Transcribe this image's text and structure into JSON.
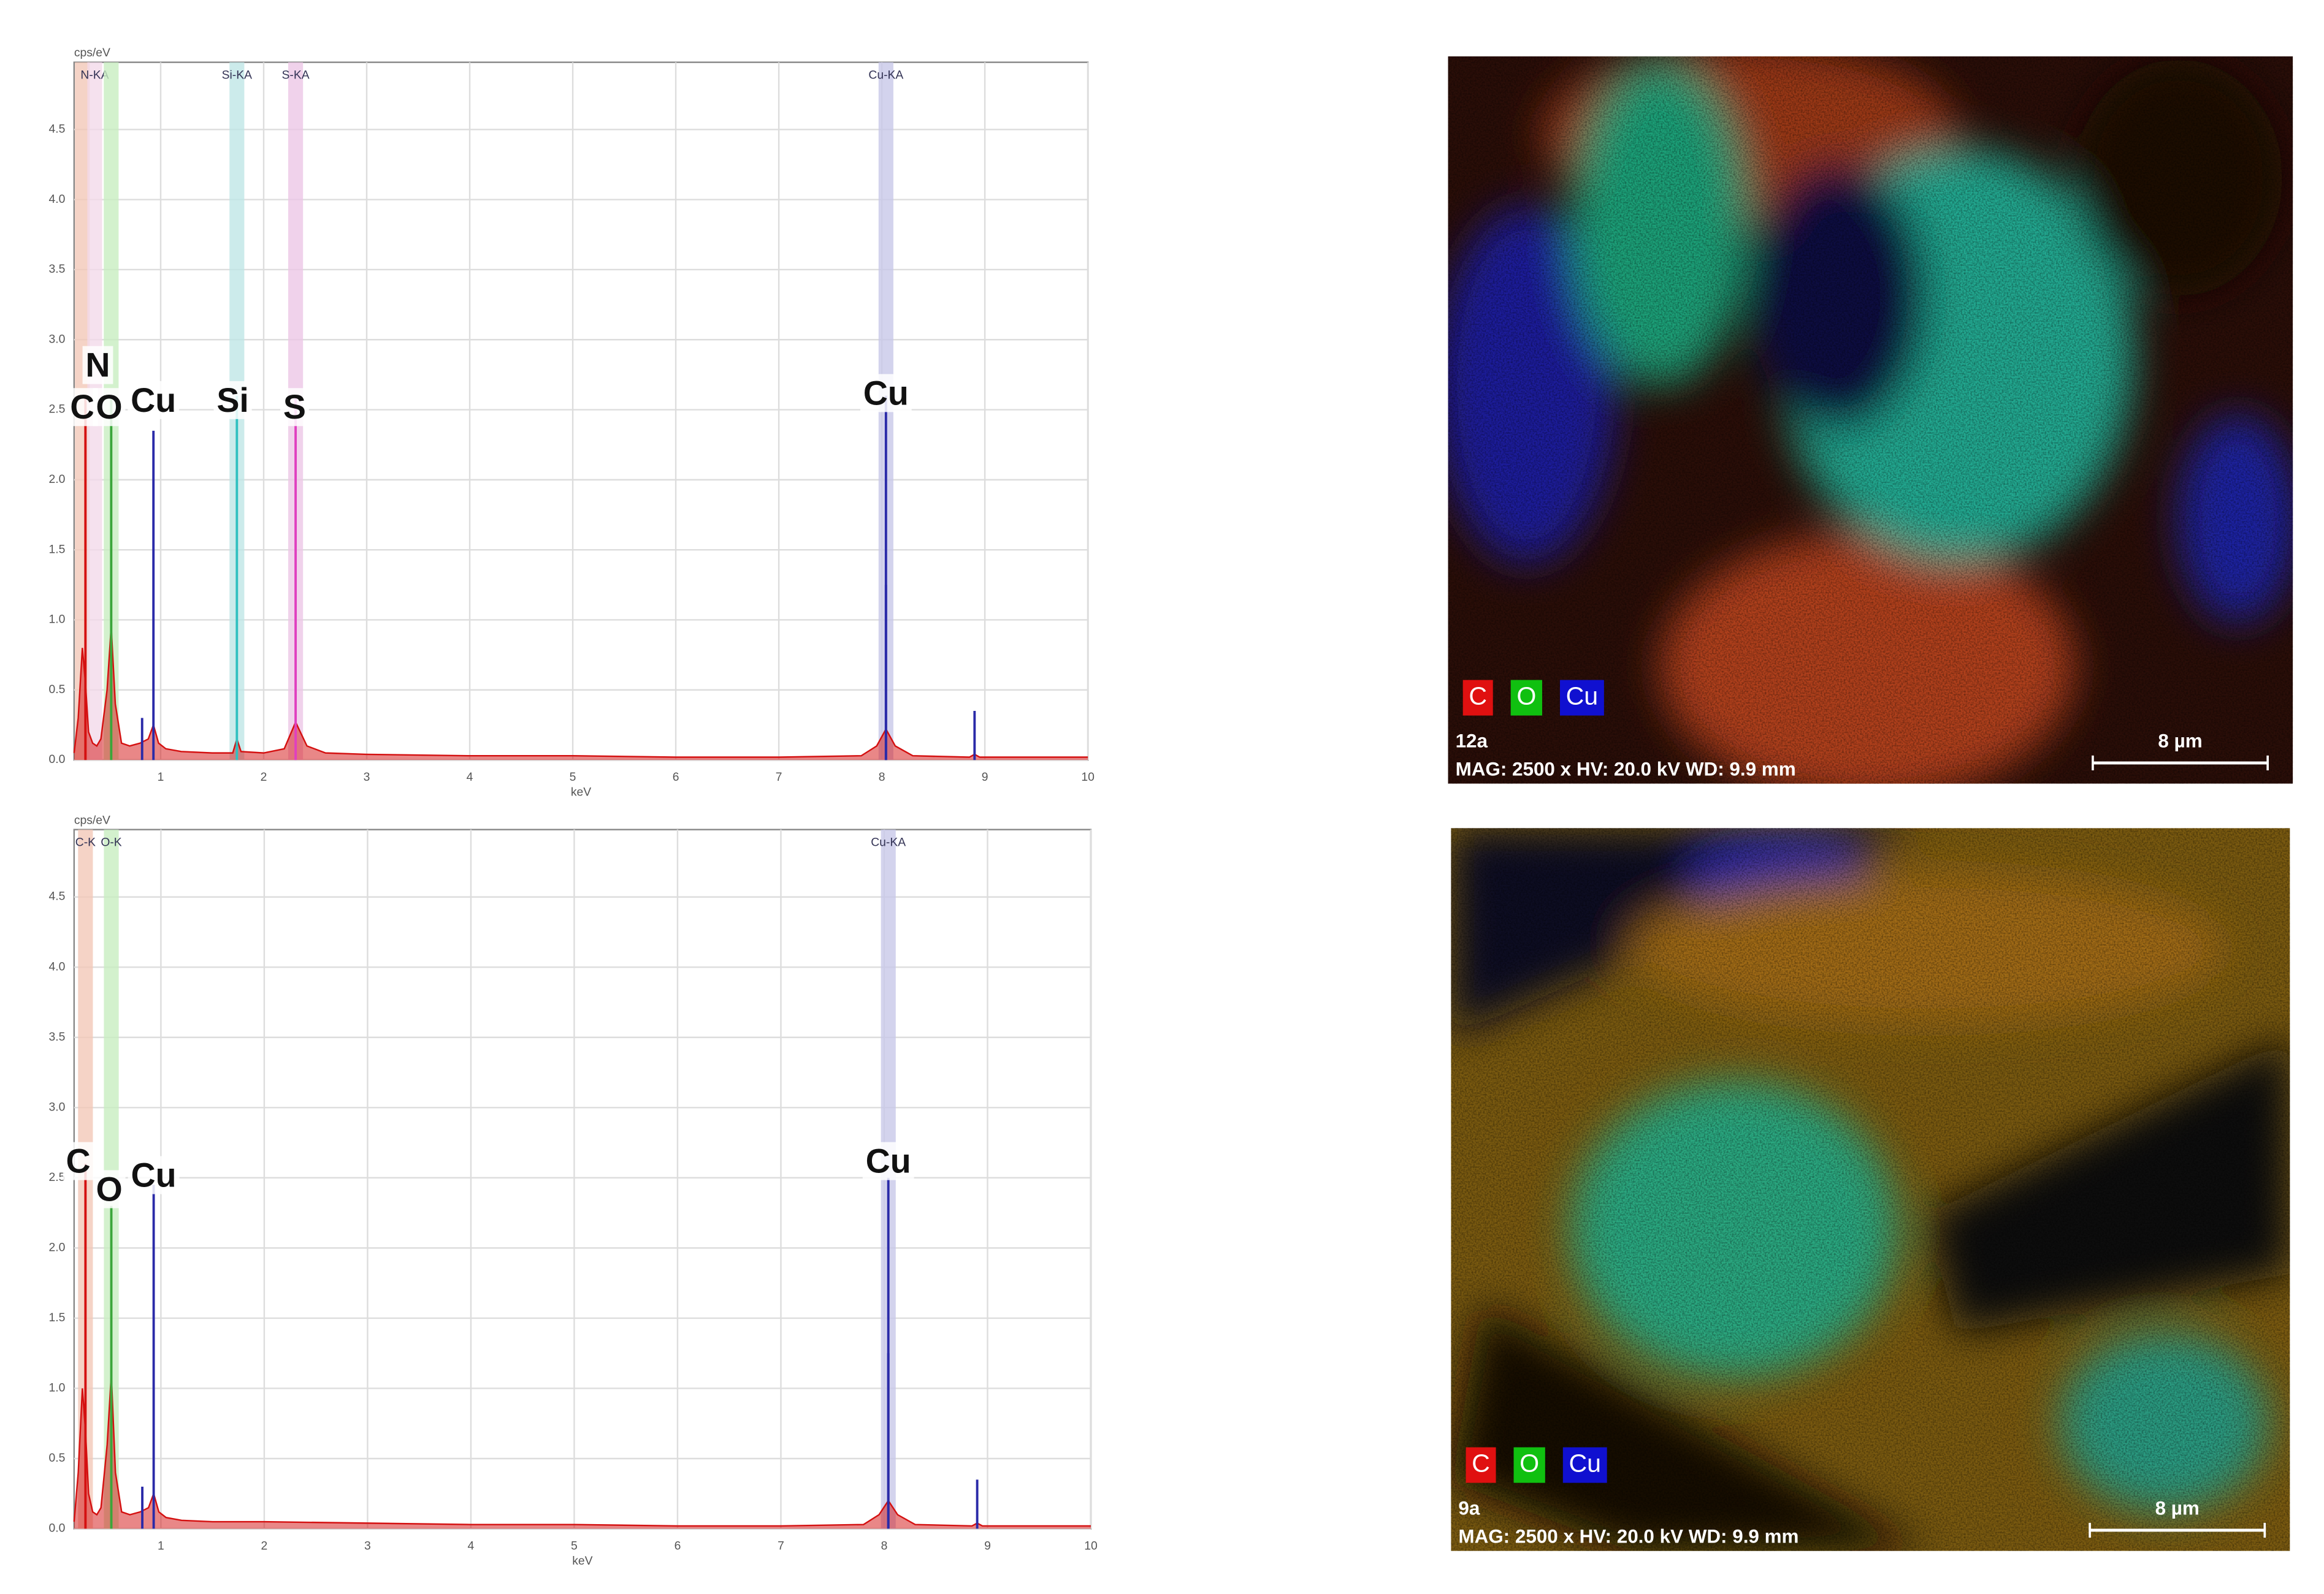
{
  "chart_data": [
    {
      "type": "line",
      "y_label": "cps/eV",
      "x_label": "keV",
      "xlim": [
        0.16,
        10
      ],
      "xticks": [
        1,
        2,
        3,
        4,
        5,
        6,
        7,
        8,
        9,
        10
      ],
      "ylim": [
        0,
        4.98
      ],
      "yticks": [
        {
          "value": 0,
          "label": "0.0"
        },
        0.5,
        {
          "value": 1,
          "label": "1.0"
        },
        1.5,
        {
          "value": 2,
          "label": "2.0"
        },
        2.5,
        {
          "value": 3,
          "label": "3.0"
        },
        3.5,
        {
          "value": 4,
          "label": "4.0"
        },
        4.5
      ],
      "grid": true,
      "spectrum": {
        "color": "#d41010",
        "x": [
          0.16,
          0.2,
          0.24,
          0.27,
          0.3,
          0.34,
          0.38,
          0.42,
          0.48,
          0.52,
          0.56,
          0.62,
          0.7,
          0.8,
          0.88,
          0.93,
          0.98,
          1.05,
          1.2,
          1.5,
          1.7,
          1.74,
          1.78,
          2.0,
          2.2,
          2.31,
          2.42,
          2.6,
          3,
          4,
          5,
          6,
          7,
          7.8,
          7.95,
          8.04,
          8.13,
          8.3,
          8.85,
          8.9,
          8.95,
          9.5,
          10
        ],
        "values": [
          0.05,
          0.3,
          0.8,
          0.55,
          0.2,
          0.12,
          0.1,
          0.15,
          0.5,
          0.95,
          0.4,
          0.12,
          0.1,
          0.12,
          0.15,
          0.25,
          0.12,
          0.08,
          0.06,
          0.05,
          0.05,
          0.15,
          0.06,
          0.05,
          0.08,
          0.27,
          0.1,
          0.05,
          0.04,
          0.03,
          0.03,
          0.02,
          0.02,
          0.03,
          0.1,
          0.22,
          0.1,
          0.03,
          0.02,
          0.04,
          0.02,
          0.02,
          0.02
        ]
      },
      "peaks": [
        {
          "color": "#d41010",
          "x": [
            0.27
          ],
          "values": [
            2.6
          ]
        },
        {
          "color": "#3aa63a",
          "x": [
            0.52
          ],
          "values": [
            2.6
          ]
        },
        {
          "color": "#2a2aa8",
          "x": [
            0.82,
            0.93,
            8.04,
            8.04,
            8.9
          ],
          "values": [
            0.3,
            2.35,
            2.6,
            1.25,
            0.35
          ]
        },
        {
          "color": "#30c0c0",
          "x": [
            1.74
          ],
          "values": [
            2.6
          ]
        },
        {
          "color": "#e040c0",
          "x": [
            2.31
          ],
          "values": [
            2.6
          ]
        }
      ],
      "bands": [
        {
          "x": 0.24,
          "color": "#f3c8b8"
        },
        {
          "x": 0.36,
          "color": "#f3d9ea",
          "label": "N-KA"
        },
        {
          "x": 0.52,
          "color": "#c8eec0"
        },
        {
          "x": 1.74,
          "color": "#bfe6e6",
          "label": "Si-KA"
        },
        {
          "x": 2.31,
          "color": "#ecc7e6",
          "label": "S-KA"
        },
        {
          "x": 8.04,
          "color": "#c8c8e8",
          "label": "Cu-KA"
        }
      ],
      "labels": [
        {
          "text": "N",
          "x": 0.39
        },
        {
          "text": "C",
          "x": 0.24
        },
        {
          "text": "O",
          "x": 0.5
        },
        {
          "text": "Cu",
          "x": 0.93
        },
        {
          "text": "Si",
          "x": 1.7
        },
        {
          "text": "S",
          "x": 2.3
        },
        {
          "text": "Cu",
          "x": 8.04
        }
      ]
    },
    {
      "type": "line",
      "y_label": "cps/eV",
      "x_label": "keV",
      "xlim": [
        0.16,
        10
      ],
      "xticks": [
        1,
        2,
        3,
        4,
        5,
        6,
        7,
        8,
        9,
        10
      ],
      "ylim": [
        0,
        4.98
      ],
      "yticks": [
        {
          "value": 0,
          "label": "0.0"
        },
        0.5,
        {
          "value": 1,
          "label": "1.0"
        },
        1.5,
        {
          "value": 2,
          "label": "2.0"
        },
        2.5,
        {
          "value": 3,
          "label": "3.0"
        },
        3.5,
        {
          "value": 4,
          "label": "4.0"
        },
        4.5
      ],
      "grid": true,
      "spectrum": {
        "color": "#d41010",
        "x": [
          0.16,
          0.2,
          0.24,
          0.27,
          0.3,
          0.34,
          0.38,
          0.42,
          0.48,
          0.52,
          0.56,
          0.62,
          0.7,
          0.8,
          0.88,
          0.93,
          0.98,
          1.05,
          1.2,
          1.5,
          2,
          3,
          4,
          5,
          6,
          7,
          7.8,
          7.95,
          8.04,
          8.13,
          8.3,
          8.85,
          8.9,
          8.95,
          9.5,
          10
        ],
        "values": [
          0.05,
          0.4,
          1.0,
          0.7,
          0.25,
          0.12,
          0.1,
          0.15,
          0.6,
          1.1,
          0.4,
          0.12,
          0.1,
          0.12,
          0.15,
          0.25,
          0.12,
          0.08,
          0.06,
          0.05,
          0.05,
          0.04,
          0.03,
          0.03,
          0.02,
          0.02,
          0.03,
          0.1,
          0.2,
          0.1,
          0.03,
          0.02,
          0.04,
          0.02,
          0.02,
          0.02
        ]
      },
      "peaks": [
        {
          "color": "#d41010",
          "x": [
            0.27
          ],
          "values": [
            2.6
          ]
        },
        {
          "color": "#3aa63a",
          "x": [
            0.52
          ],
          "values": [
            2.3
          ]
        },
        {
          "color": "#2a2aa8",
          "x": [
            0.82,
            0.93,
            8.04,
            8.04,
            8.9
          ],
          "values": [
            0.3,
            2.45,
            2.5,
            1.25,
            0.35
          ]
        }
      ],
      "bands": [
        {
          "x": 0.27,
          "color": "#f3c8b8",
          "label": "C-K"
        },
        {
          "x": 0.52,
          "color": "#c8eec0",
          "label": "O-K"
        },
        {
          "x": 8.04,
          "color": "#c8c8e8",
          "label": "Cu-KA"
        }
      ],
      "labels": [
        {
          "text": "C",
          "x": 0.2
        },
        {
          "text": "O",
          "x": 0.5
        },
        {
          "text": "Cu",
          "x": 0.93
        },
        {
          "text": "Cu",
          "x": 8.04
        }
      ]
    }
  ],
  "maps": [
    {
      "legend": [
        {
          "text": "C",
          "color": "#e01010"
        },
        {
          "text": "O",
          "color": "#10c010"
        },
        {
          "text": "Cu",
          "color": "#1010d0"
        }
      ],
      "id": "12a",
      "info": "MAG: 2500 x  HV: 20.0 kV  WD: 9.9 mm",
      "scale": "8 µm"
    },
    {
      "legend": [
        {
          "text": "C",
          "color": "#e01010"
        },
        {
          "text": "O",
          "color": "#10c010"
        },
        {
          "text": "Cu",
          "color": "#1010d0"
        }
      ],
      "id": "9a",
      "info": "MAG: 2500 x  HV: 20.0 kV  WD: 9.9 mm",
      "scale": "8 µm"
    }
  ]
}
